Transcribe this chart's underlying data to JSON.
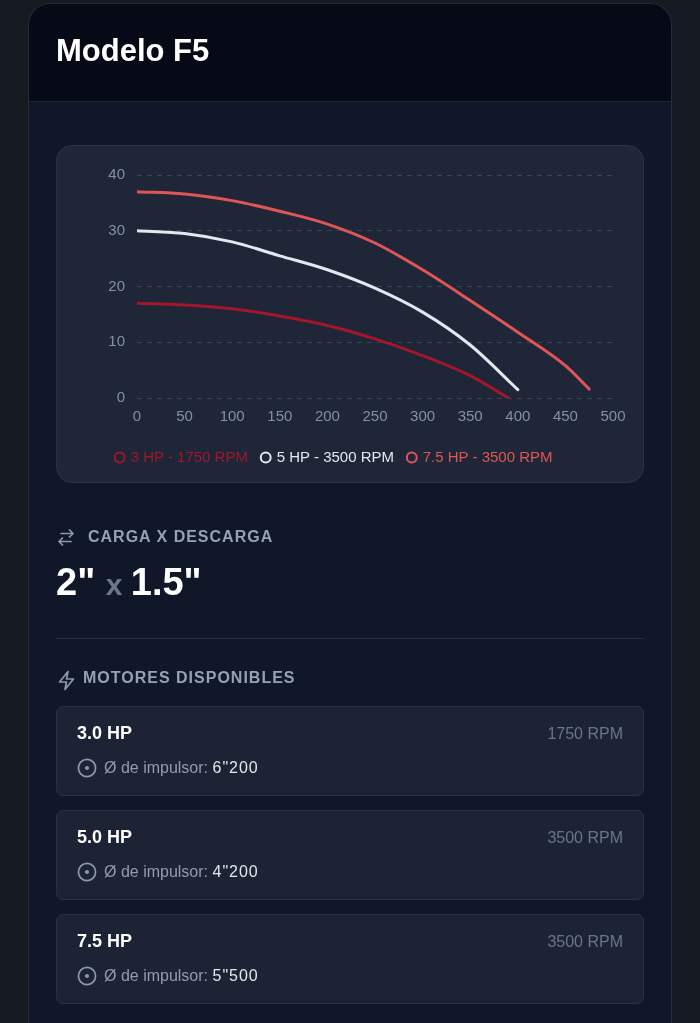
{
  "chart_data": {
    "type": "line",
    "title": "Modelo F5",
    "series": [
      {
        "name": "3 HP - 1750 RPM",
        "color": "#a3162b",
        "x": [
          0,
          50,
          100,
          150,
          200,
          250,
          300,
          350,
          390
        ],
        "values": [
          17,
          16.7,
          16,
          14.7,
          13,
          10.6,
          7.6,
          4,
          0
        ]
      },
      {
        "name": "5 HP - 3500 RPM",
        "color": "#e2e8f0",
        "x": [
          0,
          50,
          100,
          150,
          200,
          250,
          300,
          350,
          400
        ],
        "values": [
          30,
          29.5,
          28,
          25.5,
          23,
          19.7,
          15.4,
          9.5,
          1.5
        ]
      },
      {
        "name": "7.5 HP - 3500 RPM",
        "color": "#e05555",
        "x": [
          0,
          50,
          100,
          150,
          200,
          250,
          300,
          350,
          400,
          450,
          475
        ],
        "values": [
          37,
          36.6,
          35.4,
          33.5,
          31.2,
          27.8,
          23,
          17.5,
          11.8,
          5.8,
          1.6
        ]
      }
    ],
    "xlim": [
      0,
      500
    ],
    "xticks": [
      0,
      50,
      100,
      150,
      200,
      250,
      300,
      350,
      400,
      450,
      500
    ],
    "ylim": [
      0,
      40
    ],
    "yticks": [
      0,
      10,
      20,
      30,
      40
    ],
    "grid": "y",
    "legend": "bottom",
    "marker": "none",
    "line_style": "solid",
    "annotations": [
      "CARGA X DESCARGA",
      "2\" x 1.5\"",
      "MOTORES DISPONIBLES",
      "3.0 HP",
      "1750 RPM",
      "Ø de impulsor: 6\"200",
      "5.0 HP",
      "3500 RPM",
      "Ø de impulsor: 4\"200",
      "7.5 HP",
      "3500 RPM",
      "Ø de impulsor: 5\"500"
    ]
  }
}
